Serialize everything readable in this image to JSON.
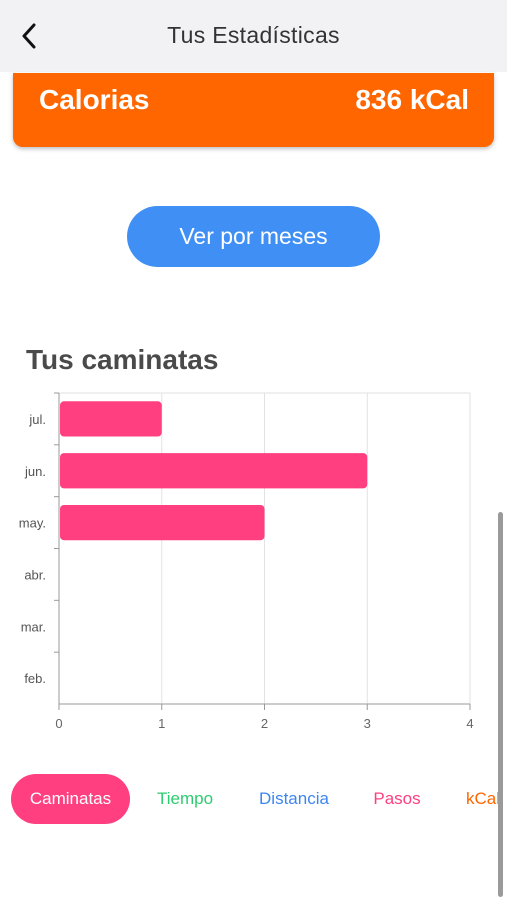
{
  "header": {
    "title": "Tus Estadísticas",
    "back_icon": "chevron-left-icon"
  },
  "calories_card": {
    "label": "Calorias",
    "value": "836 kCal",
    "color": "#ff6600"
  },
  "months_button": {
    "label": "Ver por meses",
    "color": "#3f8ff5"
  },
  "section": {
    "title": "Tus caminatas"
  },
  "chart_data": {
    "type": "bar",
    "orientation": "horizontal",
    "categories": [
      "jul.",
      "jun.",
      "may.",
      "abr.",
      "mar.",
      "feb."
    ],
    "values": [
      1,
      3,
      2,
      0,
      0,
      0
    ],
    "xlim": [
      0,
      4
    ],
    "xticks": [
      "0",
      "1",
      "2",
      "3",
      "4"
    ],
    "grid": true,
    "bar_color": "#ff3f7f"
  },
  "tabs": [
    {
      "label": "Caminatas",
      "active": true,
      "color": "#ff3f7f"
    },
    {
      "label": "Tiempo",
      "active": false,
      "color": "#2ecc71"
    },
    {
      "label": "Distancia",
      "active": false,
      "color": "#3d86f0"
    },
    {
      "label": "Pasos",
      "active": false,
      "color": "#ff3f7f"
    },
    {
      "label": "kCal",
      "active": false,
      "color": "#ff6600"
    }
  ]
}
